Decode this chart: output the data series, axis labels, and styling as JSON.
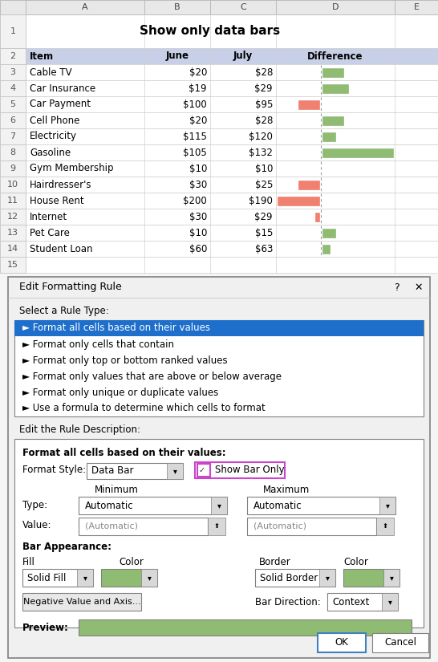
{
  "title": "Show only data bars",
  "rows": [
    [
      "Cable TV",
      "$20",
      "$28",
      8
    ],
    [
      "Car Insurance",
      "$19",
      "$29",
      10
    ],
    [
      "Car Payment",
      "$100",
      "$95",
      -5
    ],
    [
      "Cell Phone",
      "$20",
      "$28",
      8
    ],
    [
      "Electricity",
      "$115",
      "$120",
      5
    ],
    [
      "Gasoline",
      "$105",
      "$132",
      27
    ],
    [
      "Gym Membership",
      "$10",
      "$10",
      0
    ],
    [
      "Hairdresser's",
      "$30",
      "$25",
      -5
    ],
    [
      "House Rent",
      "$200",
      "$190",
      -10
    ],
    [
      "Internet",
      "$30",
      "$29",
      -1
    ],
    [
      "Pet Care",
      "$10",
      "$15",
      5
    ],
    [
      "Student Loan",
      "$60",
      "$63",
      3
    ]
  ],
  "green_bar": "#8fbc72",
  "red_bar": "#f08070",
  "col_header_color": "#c8d0e8",
  "selected_rule_bg": "#1e6fcc",
  "preview_bar_color": "#8fbc72",
  "checkbox_border": "#cc44cc",
  "dialog_title": "Edit Formatting Rule",
  "rule_types": [
    "► Format all cells based on their values",
    "► Format only cells that contain",
    "► Format only top or bottom ranked values",
    "► Format only values that are above or below average",
    "► Format only unique or duplicate values",
    "► Use a formula to determine which cells to format"
  ]
}
